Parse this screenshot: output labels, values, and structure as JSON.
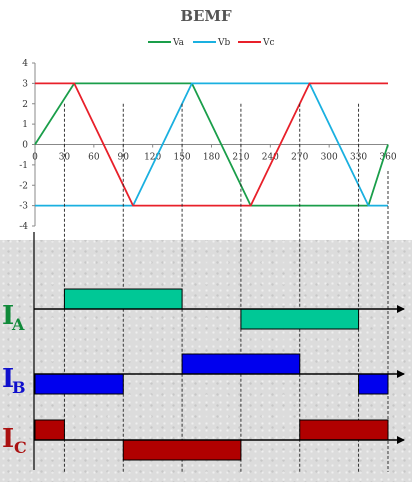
{
  "title": "BEMF",
  "colors": {
    "va": "#1a9e4a",
    "vb": "#1ab0e0",
    "vc": "#e8202a",
    "ia": "#00c896",
    "ib": "#0000ee",
    "ic": "#b00000",
    "label_a": "#118a3a",
    "label_b": "#1010cc",
    "label_c": "#aa1010"
  },
  "phase_labels": {
    "a": {
      "letter": "I",
      "sub": "A"
    },
    "b": {
      "letter": "I",
      "sub": "B"
    },
    "c": {
      "letter": "I",
      "sub": "C"
    }
  },
  "chart_data": {
    "type": "line",
    "title": "BEMF",
    "xlabel": "",
    "ylabel": "",
    "xlim": [
      0,
      360
    ],
    "ylim": [
      -4,
      4
    ],
    "x_ticks": [
      0,
      30,
      60,
      90,
      120,
      150,
      180,
      210,
      240,
      270,
      300,
      330,
      360
    ],
    "y_ticks": [
      4,
      3,
      2,
      1,
      0,
      -1,
      -2,
      -3,
      -4
    ],
    "legend": "top",
    "grid": false,
    "series": [
      {
        "name": "Va",
        "x": [
          0,
          40,
          160,
          220,
          340,
          360
        ],
        "y": [
          0,
          3,
          3,
          -3,
          -3,
          0
        ]
      },
      {
        "name": "Vb",
        "x": [
          0,
          100,
          160,
          280,
          340,
          360
        ],
        "y": [
          -3,
          -3,
          3,
          3,
          -3,
          -3
        ]
      },
      {
        "name": "Vc",
        "x": [
          0,
          40,
          100,
          220,
          280,
          360
        ],
        "y": [
          3,
          3,
          -3,
          -3,
          3,
          3
        ]
      }
    ]
  },
  "current_data": {
    "dashed_angles": [
      30,
      90,
      150,
      210,
      270,
      330,
      360
    ],
    "a": [
      {
        "start": 30,
        "end": 150,
        "level": 1
      },
      {
        "start": 210,
        "end": 330,
        "level": -1
      }
    ],
    "b": [
      {
        "start": 0,
        "end": 90,
        "level": -1
      },
      {
        "start": 150,
        "end": 270,
        "level": 1
      },
      {
        "start": 330,
        "end": 360,
        "level": -1
      }
    ],
    "c": [
      {
        "start": 0,
        "end": 30,
        "level": 1
      },
      {
        "start": 90,
        "end": 210,
        "level": -1
      },
      {
        "start": 270,
        "end": 360,
        "level": 1
      }
    ]
  }
}
